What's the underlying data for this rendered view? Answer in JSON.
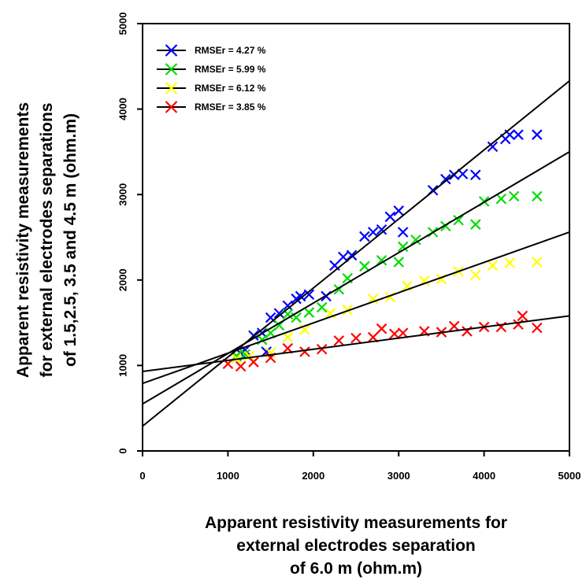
{
  "chart_data": {
    "type": "scatter",
    "title": "",
    "xlabel_lines": [
      "Apparent resistivity measurements for",
      "external electrodes separation",
      "of 6.0 m (ohm.m)"
    ],
    "ylabel_lines": [
      "Apparent resistivity measurements",
      "for external electrodes separations",
      "of 1.5,2.5, 3.5 and 4.5 m (ohm.m)"
    ],
    "xlim": [
      0,
      5000
    ],
    "ylim": [
      0,
      5000
    ],
    "xticks": [
      "0",
      "1000",
      "2000",
      "3000",
      "4000",
      "5000"
    ],
    "yticks": [
      "0",
      "1000",
      "2000",
      "3000",
      "4000",
      "5000"
    ],
    "grid": false,
    "legend_position": "top-left",
    "series": [
      {
        "name": "RMSEr = 4.27 %",
        "color": "#0000ff",
        "marker": "x",
        "fit_line": {
          "x": [
            0,
            5000
          ],
          "y": [
            290,
            4330
          ]
        },
        "points": [
          [
            1100,
            1110
          ],
          [
            1150,
            1140
          ],
          [
            1200,
            1180
          ],
          [
            1300,
            1350
          ],
          [
            1400,
            1380
          ],
          [
            1500,
            1560
          ],
          [
            1600,
            1610
          ],
          [
            1700,
            1700
          ],
          [
            1800,
            1780
          ],
          [
            1850,
            1810
          ],
          [
            1950,
            1830
          ],
          [
            2150,
            1810
          ],
          [
            2250,
            2170
          ],
          [
            2350,
            2270
          ],
          [
            2450,
            2290
          ],
          [
            2600,
            2510
          ],
          [
            2700,
            2560
          ],
          [
            2800,
            2590
          ],
          [
            2900,
            2740
          ],
          [
            3000,
            2810
          ],
          [
            3050,
            2560
          ],
          [
            3400,
            3050
          ],
          [
            3550,
            3180
          ],
          [
            3650,
            3230
          ],
          [
            3750,
            3240
          ],
          [
            3900,
            3230
          ],
          [
            4100,
            3560
          ],
          [
            4250,
            3650
          ],
          [
            4300,
            3700
          ],
          [
            4400,
            3700
          ],
          [
            4620,
            3700
          ],
          [
            1450,
            1160
          ]
        ]
      },
      {
        "name": "RMSEr = 5.99 %",
        "color": "#00dd00",
        "marker": "x",
        "fit_line": {
          "x": [
            0,
            5000
          ],
          "y": [
            550,
            3500
          ]
        },
        "points": [
          [
            1100,
            1110
          ],
          [
            1200,
            1130
          ],
          [
            1400,
            1300
          ],
          [
            1500,
            1380
          ],
          [
            1600,
            1470
          ],
          [
            1700,
            1600
          ],
          [
            1800,
            1560
          ],
          [
            1950,
            1620
          ],
          [
            2100,
            1680
          ],
          [
            2300,
            1890
          ],
          [
            2400,
            2020
          ],
          [
            2600,
            2160
          ],
          [
            2800,
            2230
          ],
          [
            3000,
            2210
          ],
          [
            3050,
            2390
          ],
          [
            3200,
            2470
          ],
          [
            3400,
            2560
          ],
          [
            3550,
            2630
          ],
          [
            3700,
            2700
          ],
          [
            3900,
            2650
          ],
          [
            4000,
            2920
          ],
          [
            4200,
            2950
          ],
          [
            4350,
            2980
          ],
          [
            4620,
            2980
          ]
        ]
      },
      {
        "name": "RMSEr = 6.12 %",
        "color": "#ffff00",
        "marker": "x",
        "fit_line": {
          "x": [
            0,
            5000
          ],
          "y": [
            790,
            2560
          ]
        },
        "points": [
          [
            1100,
            1080
          ],
          [
            1250,
            1110
          ],
          [
            1500,
            1150
          ],
          [
            1700,
            1330
          ],
          [
            1900,
            1420
          ],
          [
            2200,
            1610
          ],
          [
            2400,
            1650
          ],
          [
            2700,
            1780
          ],
          [
            2900,
            1800
          ],
          [
            3100,
            1930
          ],
          [
            3300,
            1990
          ],
          [
            3500,
            2010
          ],
          [
            3700,
            2100
          ],
          [
            3900,
            2060
          ],
          [
            4100,
            2170
          ],
          [
            4300,
            2200
          ],
          [
            4620,
            2210
          ]
        ]
      },
      {
        "name": "RMSEr = 3.85 %",
        "color": "#ff0000",
        "marker": "x",
        "fit_line": {
          "x": [
            0,
            5000
          ],
          "y": [
            930,
            1580
          ]
        },
        "points": [
          [
            1000,
            1020
          ],
          [
            1150,
            990
          ],
          [
            1300,
            1040
          ],
          [
            1500,
            1090
          ],
          [
            1700,
            1200
          ],
          [
            1900,
            1160
          ],
          [
            2100,
            1190
          ],
          [
            2300,
            1290
          ],
          [
            2500,
            1320
          ],
          [
            2700,
            1330
          ],
          [
            2800,
            1430
          ],
          [
            2950,
            1370
          ],
          [
            3050,
            1380
          ],
          [
            3300,
            1400
          ],
          [
            3500,
            1390
          ],
          [
            3650,
            1460
          ],
          [
            3800,
            1400
          ],
          [
            4000,
            1450
          ],
          [
            4200,
            1450
          ],
          [
            4400,
            1480
          ],
          [
            4450,
            1580
          ],
          [
            4620,
            1440
          ]
        ]
      }
    ]
  }
}
